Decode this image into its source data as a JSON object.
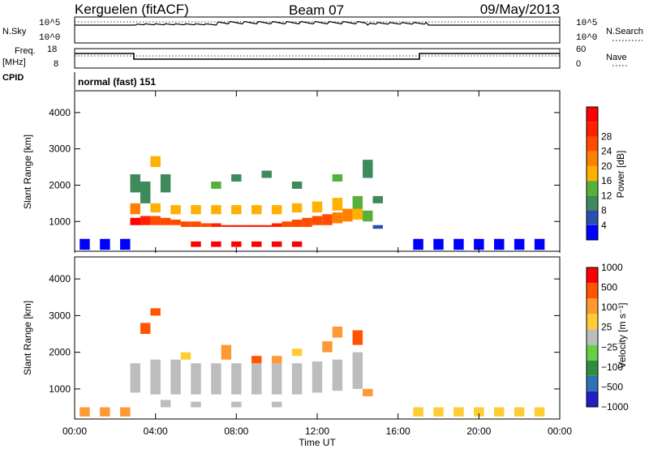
{
  "header": {
    "station": "Kerguelen (fitACF)",
    "beam": "Beam 07",
    "date": "09/May/2013"
  },
  "panel_labels": {
    "nsky": "N.Sky",
    "nsearch": "N.Search",
    "freq_top": "Freq.",
    "freq_unit": "[MHz]",
    "nave": "Nave",
    "cpid": "CPID",
    "mode": "normal (fast) 151"
  },
  "small_axes": {
    "noise_left_ticks": [
      "10^5",
      "10^0"
    ],
    "noise_right_ticks": [
      "10^5",
      "10^0"
    ],
    "freq_left_ticks": [
      "18",
      "8"
    ],
    "freq_right_ticks": [
      "60",
      "0"
    ]
  },
  "colors": {
    "power_scale": [
      "#0000ff",
      "#2a4fb0",
      "#3f8a5a",
      "#58b03a",
      "#ffb000",
      "#ff8000",
      "#ff4c00",
      "#ff2000",
      "#ff0000"
    ],
    "velocity_scale": [
      "#2020c0",
      "#2f6fb6",
      "#2f8d42",
      "#66d044",
      "#bdbdbd",
      "#ffcc33",
      "#ff9933",
      "#ff5500",
      "#ff0000"
    ]
  },
  "chart_data": [
    {
      "type": "heatmap",
      "panel": "power",
      "ylabel": "Slant Range [km]",
      "xlim": [
        0,
        24
      ],
      "ylim": [
        180,
        4600
      ],
      "yticks": [
        "1000",
        "2000",
        "3000",
        "4000"
      ],
      "colorbar": {
        "label": "Power [dB]",
        "ticks": [
          "4",
          "8",
          "12",
          "16",
          "20",
          "24",
          "28"
        ]
      },
      "cells": [
        [
          3.0,
          900,
          1100,
          1.0
        ],
        [
          3.5,
          900,
          1150,
          0.9
        ],
        [
          4.0,
          900,
          1150,
          0.8
        ],
        [
          4.5,
          900,
          1100,
          0.75
        ],
        [
          5.0,
          900,
          1050,
          0.7
        ],
        [
          5.5,
          850,
          1000,
          0.72
        ],
        [
          6.0,
          850,
          1000,
          0.75
        ],
        [
          6.5,
          850,
          950,
          0.8
        ],
        [
          7.0,
          850,
          950,
          0.85
        ],
        [
          7.5,
          850,
          900,
          0.88
        ],
        [
          8.0,
          850,
          900,
          0.9
        ],
        [
          8.5,
          850,
          900,
          0.9
        ],
        [
          9.0,
          850,
          900,
          0.9
        ],
        [
          9.5,
          850,
          900,
          0.88
        ],
        [
          10.0,
          850,
          950,
          0.85
        ],
        [
          10.5,
          850,
          1000,
          0.8
        ],
        [
          11.0,
          850,
          1050,
          0.78
        ],
        [
          11.5,
          850,
          1100,
          0.76
        ],
        [
          12.0,
          900,
          1150,
          0.74
        ],
        [
          12.5,
          900,
          1200,
          0.7
        ],
        [
          13.0,
          950,
          1250,
          0.65
        ],
        [
          13.5,
          1000,
          1350,
          0.6
        ],
        [
          14.0,
          1050,
          1450,
          0.5
        ],
        [
          14.5,
          1000,
          1300,
          0.35
        ],
        [
          3.0,
          1200,
          1500,
          0.6
        ],
        [
          4.0,
          1250,
          1500,
          0.55
        ],
        [
          5.0,
          1200,
          1450,
          0.5
        ],
        [
          6.0,
          1200,
          1450,
          0.48
        ],
        [
          7.0,
          1200,
          1450,
          0.45
        ],
        [
          8.0,
          1200,
          1450,
          0.5
        ],
        [
          9.0,
          1200,
          1450,
          0.52
        ],
        [
          10.0,
          1200,
          1450,
          0.55
        ],
        [
          11.0,
          1250,
          1500,
          0.5
        ],
        [
          12.0,
          1250,
          1550,
          0.5
        ],
        [
          13.0,
          1300,
          1650,
          0.45
        ],
        [
          14.0,
          1350,
          1700,
          0.4
        ],
        [
          15.0,
          1500,
          1700,
          0.3
        ],
        [
          3.0,
          1800,
          2300,
          0.2
        ],
        [
          4.0,
          2500,
          2800,
          0.5
        ],
        [
          3.5,
          1500,
          2100,
          0.25
        ],
        [
          4.5,
          1800,
          2300,
          0.2
        ],
        [
          7.0,
          1900,
          2100,
          0.35
        ],
        [
          8.0,
          2100,
          2300,
          0.3
        ],
        [
          9.5,
          2200,
          2400,
          0.25
        ],
        [
          11.0,
          1900,
          2100,
          0.3
        ],
        [
          13.0,
          2100,
          2300,
          0.35
        ],
        [
          14.5,
          2200,
          2700,
          0.25
        ],
        [
          15.0,
          800,
          900,
          0.15
        ],
        [
          6.0,
          300,
          450,
          1.0
        ],
        [
          7.0,
          300,
          450,
          1.0
        ],
        [
          8.0,
          300,
          450,
          1.0
        ],
        [
          9.0,
          300,
          450,
          1.0
        ],
        [
          10.0,
          300,
          450,
          1.0
        ],
        [
          11.0,
          300,
          450,
          1.0
        ],
        [
          0.5,
          220,
          520,
          0.05
        ],
        [
          1.5,
          220,
          520,
          0.05
        ],
        [
          2.5,
          220,
          520,
          0.05
        ],
        [
          17.0,
          220,
          520,
          0.05
        ],
        [
          18.0,
          220,
          520,
          0.05
        ],
        [
          19.0,
          220,
          520,
          0.05
        ],
        [
          20.0,
          220,
          520,
          0.05
        ],
        [
          21.0,
          220,
          520,
          0.05
        ],
        [
          22.0,
          220,
          520,
          0.05
        ],
        [
          23.0,
          220,
          520,
          0.05
        ]
      ]
    },
    {
      "type": "heatmap",
      "panel": "velocity",
      "ylabel": "Slant Range [km]",
      "xlabel": "Time UT",
      "xlim": [
        0,
        24
      ],
      "ylim": [
        180,
        4600
      ],
      "xticks": [
        "00:00",
        "04:00",
        "08:00",
        "12:00",
        "16:00",
        "20:00",
        "00:00"
      ],
      "yticks": [
        "1000",
        "2000",
        "3000",
        "4000"
      ],
      "colorbar": {
        "label": "Velocity [m s⁻¹]",
        "ticks": [
          "1000",
          "500",
          "100",
          "25",
          "−25",
          "−100",
          "−500",
          "−1000"
        ]
      },
      "cells": [
        [
          3.0,
          900,
          1700,
          0.5
        ],
        [
          4.0,
          850,
          1800,
          0.5
        ],
        [
          5.0,
          850,
          1800,
          0.5
        ],
        [
          6.0,
          850,
          1700,
          0.5
        ],
        [
          7.0,
          850,
          1700,
          0.5
        ],
        [
          8.0,
          850,
          1700,
          0.5
        ],
        [
          9.0,
          850,
          1700,
          0.5
        ],
        [
          10.0,
          850,
          1700,
          0.5
        ],
        [
          11.0,
          850,
          1700,
          0.5
        ],
        [
          12.0,
          900,
          1750,
          0.5
        ],
        [
          13.0,
          950,
          1800,
          0.5
        ],
        [
          14.0,
          1000,
          2000,
          0.5
        ],
        [
          14.5,
          800,
          1000,
          0.72
        ],
        [
          3.5,
          2500,
          2800,
          0.84
        ],
        [
          4.0,
          3000,
          3200,
          0.85
        ],
        [
          5.5,
          1800,
          2000,
          0.68
        ],
        [
          7.5,
          1800,
          2200,
          0.74
        ],
        [
          9.0,
          1700,
          1900,
          0.82
        ],
        [
          10.0,
          1700,
          1900,
          0.76
        ],
        [
          11.0,
          1900,
          2100,
          0.58
        ],
        [
          12.5,
          2000,
          2300,
          0.78
        ],
        [
          13.0,
          2400,
          2700,
          0.74
        ],
        [
          14.0,
          2200,
          2600,
          0.82
        ],
        [
          4.5,
          500,
          700,
          0.5
        ],
        [
          6.0,
          500,
          650,
          0.5
        ],
        [
          8.0,
          500,
          650,
          0.5
        ],
        [
          10.0,
          500,
          650,
          0.5
        ],
        [
          0.5,
          250,
          500,
          0.72
        ],
        [
          1.5,
          250,
          500,
          0.72
        ],
        [
          2.5,
          250,
          500,
          0.72
        ],
        [
          17.0,
          250,
          500,
          0.66
        ],
        [
          18.0,
          250,
          500,
          0.66
        ],
        [
          19.0,
          250,
          500,
          0.66
        ],
        [
          20.0,
          250,
          500,
          0.66
        ],
        [
          21.0,
          250,
          500,
          0.66
        ],
        [
          22.0,
          250,
          500,
          0.66
        ],
        [
          23.0,
          250,
          500,
          0.66
        ]
      ]
    }
  ]
}
